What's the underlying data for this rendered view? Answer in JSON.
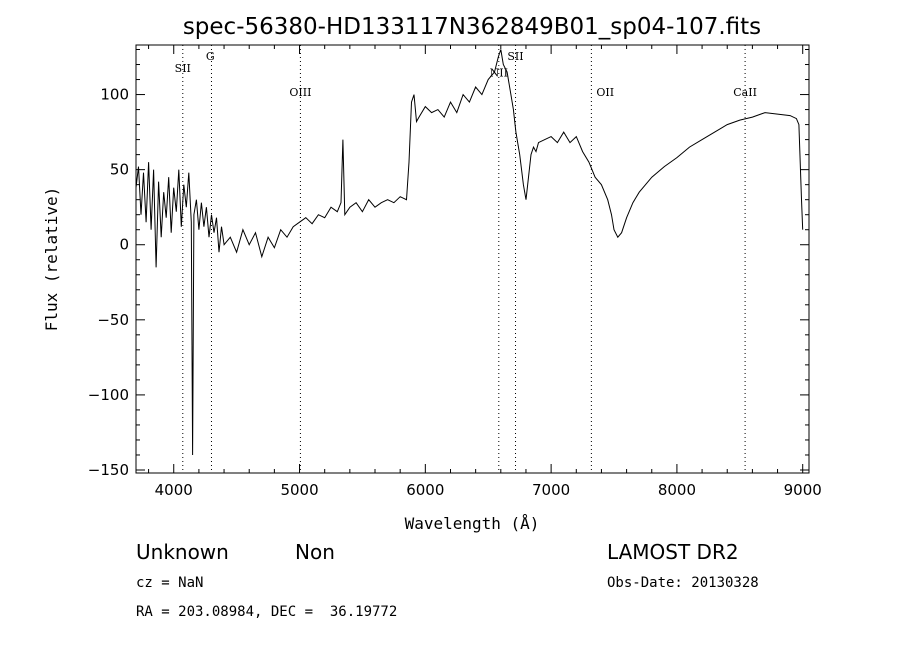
{
  "chart_data": {
    "type": "line",
    "title": "spec-56380-HD133117N362849B01_sp04-107.fits",
    "xlabel": "Wavelength (Å)",
    "ylabel": "Flux (relative)",
    "xlim": [
      3700,
      9050
    ],
    "ylim": [
      -152,
      133
    ],
    "x_ticks": [
      4000,
      5000,
      6000,
      7000,
      8000,
      9000
    ],
    "y_ticks": [
      -150,
      -100,
      -50,
      0,
      50,
      100
    ],
    "x_tick_labels": [
      "4000",
      "5000",
      "6000",
      "7000",
      "8000",
      "9000"
    ],
    "y_tick_labels": [
      "−150",
      "−100",
      "−50",
      "0",
      "50",
      "100"
    ],
    "grid": false,
    "series": [
      {
        "x": [
          3700,
          3720,
          3740,
          3760,
          3780,
          3800,
          3820,
          3840,
          3860,
          3880,
          3900,
          3920,
          3940,
          3960,
          3980,
          4000,
          4020,
          4040,
          4060,
          4080,
          4100,
          4120,
          4140,
          4150,
          4160,
          4180,
          4200,
          4220,
          4240,
          4260,
          4280,
          4300,
          4320,
          4340,
          4360,
          4380,
          4400,
          4450,
          4500,
          4550,
          4600,
          4650,
          4700,
          4750,
          4800,
          4850,
          4900,
          4950,
          5000,
          5050,
          5100,
          5150,
          5200,
          5250,
          5300,
          5330,
          5345,
          5360,
          5400,
          5450,
          5500,
          5550,
          5600,
          5650,
          5700,
          5750,
          5800,
          5850,
          5870,
          5890,
          5910,
          5930,
          5950,
          6000,
          6050,
          6100,
          6150,
          6200,
          6250,
          6300,
          6350,
          6400,
          6450,
          6500,
          6550,
          6580,
          6600,
          6620,
          6650,
          6680,
          6700,
          6720,
          6750,
          6780,
          6800,
          6820,
          6840,
          6860,
          6880,
          6900,
          6950,
          7000,
          7050,
          7100,
          7150,
          7200,
          7250,
          7300,
          7350,
          7400,
          7450,
          7480,
          7500,
          7530,
          7560,
          7600,
          7650,
          7700,
          7800,
          7900,
          8000,
          8100,
          8200,
          8300,
          8400,
          8500,
          8600,
          8700,
          8800,
          8900,
          8950,
          8970,
          8990,
          9000
        ],
        "y": [
          38,
          52,
          20,
          48,
          15,
          55,
          10,
          50,
          -15,
          42,
          5,
          35,
          18,
          45,
          8,
          38,
          22,
          50,
          12,
          40,
          25,
          48,
          15,
          -140,
          20,
          30,
          10,
          28,
          12,
          25,
          5,
          20,
          8,
          18,
          -5,
          12,
          0,
          5,
          -5,
          10,
          0,
          8,
          -8,
          5,
          -2,
          10,
          5,
          12,
          15,
          18,
          14,
          20,
          18,
          25,
          22,
          28,
          70,
          20,
          25,
          28,
          22,
          30,
          25,
          28,
          30,
          28,
          32,
          30,
          55,
          95,
          100,
          82,
          85,
          92,
          88,
          90,
          85,
          95,
          88,
          100,
          95,
          105,
          100,
          110,
          115,
          125,
          130,
          120,
          115,
          100,
          90,
          75,
          60,
          40,
          30,
          45,
          60,
          65,
          62,
          68,
          70,
          72,
          68,
          75,
          68,
          72,
          62,
          55,
          45,
          40,
          30,
          20,
          10,
          5,
          8,
          18,
          28,
          35,
          45,
          52,
          58,
          65,
          70,
          75,
          80,
          83,
          85,
          88,
          87,
          86,
          84,
          80,
          30,
          10
        ]
      }
    ],
    "line_markers": [
      {
        "label": "SII",
        "x": 4072,
        "label_x": 4072,
        "label_y": 115
      },
      {
        "label": "G",
        "x": 4300,
        "label_x": 4290,
        "label_y": 123
      },
      {
        "label": "OIII",
        "x": 5007,
        "label_x": 5007,
        "label_y": 99
      },
      {
        "label": "NII",
        "x": 6584,
        "label_x": 6584,
        "label_y": 112
      },
      {
        "label": "SII",
        "x": 6717,
        "label_x": 6717,
        "label_y": 123
      },
      {
        "label": "OII",
        "x": 7320,
        "label_x": 7430,
        "label_y": 99
      },
      {
        "label": "CaII",
        "x": 8542,
        "label_x": 8542,
        "label_y": 99
      }
    ]
  },
  "info": {
    "object_class": "Unknown",
    "subclass": "Non",
    "survey": "LAMOST DR2",
    "cz": "cz = NaN",
    "obs_date": "Obs-Date: 20130328",
    "coords": "RA = 203.08984, DEC =  36.19772"
  },
  "colors": {
    "line": "#000000",
    "marker": "#000000",
    "background": "#ffffff"
  }
}
